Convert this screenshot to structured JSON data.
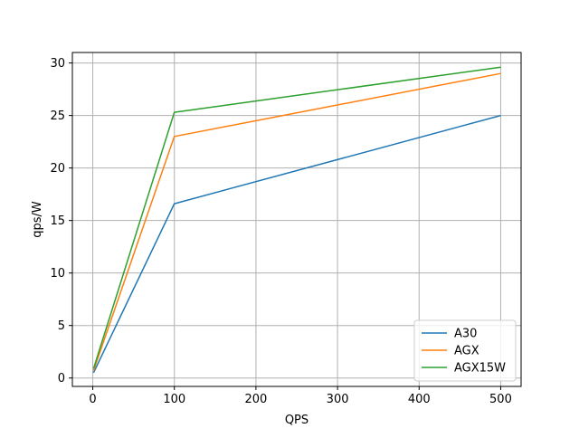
{
  "chart_data": {
    "type": "line",
    "title": "",
    "xlabel": "QPS",
    "ylabel": "qps/W",
    "xlim": [
      -25,
      525
    ],
    "ylim": [
      -0.8,
      31.0
    ],
    "xticks": [
      0,
      100,
      200,
      300,
      400,
      500
    ],
    "yticks": [
      0,
      5,
      10,
      15,
      20,
      25,
      30
    ],
    "xtick_labels": [
      "0",
      "100",
      "200",
      "300",
      "400",
      "500"
    ],
    "ytick_labels": [
      "0",
      "5",
      "10",
      "15",
      "20",
      "25",
      "30"
    ],
    "grid": true,
    "legend_position": "lower-right",
    "x": [
      1,
      100,
      500
    ],
    "series": [
      {
        "name": "A30",
        "color": "#1f77b4",
        "values": [
          0.5,
          16.6,
          25.0
        ]
      },
      {
        "name": "AGX",
        "color": "#ff7f0e",
        "values": [
          0.7,
          23.0,
          29.0
        ]
      },
      {
        "name": "AGX15W",
        "color": "#2ca02c",
        "values": [
          0.9,
          25.3,
          29.6
        ]
      }
    ]
  }
}
